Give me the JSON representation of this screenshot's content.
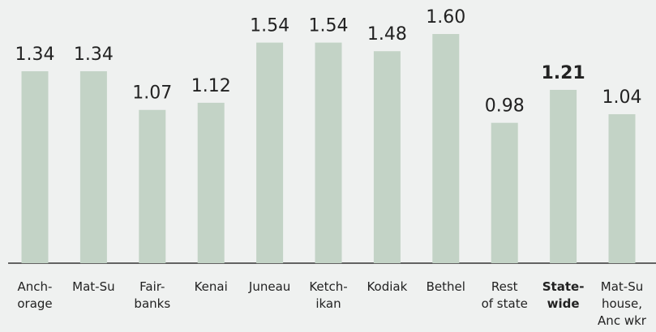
{
  "chart_data": {
    "type": "bar",
    "categories": [
      "Anch-\norage",
      "Mat-Su",
      "Fair-\nbanks",
      "Kenai",
      "Juneau",
      "Ketch-\nikan",
      "Kodiak",
      "Bethel",
      "Rest\nof state",
      "State-\nwide",
      "Mat-Su\nhouse,\nAnc wkr"
    ],
    "values": [
      1.34,
      1.34,
      1.07,
      1.12,
      1.54,
      1.54,
      1.48,
      1.6,
      0.98,
      1.21,
      1.04
    ],
    "value_labels": [
      "1.34",
      "1.34",
      "1.07",
      "1.12",
      "1.54",
      "1.54",
      "1.48",
      "1.60",
      "0.98",
      "1.21",
      "1.04"
    ],
    "color": "#c3d3c6",
    "highlight": 9
  }
}
